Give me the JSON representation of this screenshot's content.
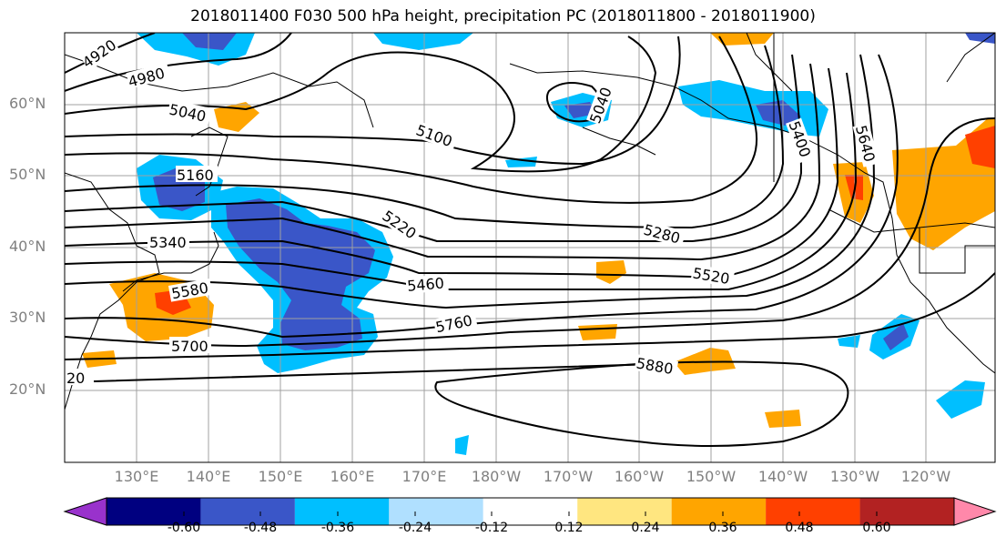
{
  "title": "2018011400 F030 500 hPa height, precipitation PC (2018011800 - 2018011900)",
  "lat_labels": [
    "60°N",
    "50°N",
    "40°N",
    "30°N",
    "20°N"
  ],
  "lon_labels": [
    "130°E",
    "140°E",
    "150°E",
    "160°E",
    "170°E",
    "180°W",
    "170°W",
    "160°W",
    "150°W",
    "140°W",
    "130°W",
    "120°W"
  ],
  "contour_labels": [
    "4920",
    "4980",
    "5040",
    "5160",
    "5340",
    "5580",
    "5700",
    "20",
    "5100",
    "5040",
    "5220",
    "5460",
    "5760",
    "5280",
    "5520",
    "5880",
    "5400",
    "5640"
  ],
  "colorbar": {
    "ticks": [
      "-0.60",
      "-0.48",
      "-0.36",
      "-0.24",
      "-0.12",
      "0.12",
      "0.24",
      "0.36",
      "0.48",
      "0.60"
    ],
    "colors": [
      "#9932cc",
      "#000080",
      "#3a56c8",
      "#00bfff",
      "#b0e0ff",
      "#ffffff",
      "#ffe680",
      "#ffa500",
      "#ff4000",
      "#b22222",
      "#ff88aa"
    ]
  },
  "fill_colors": {
    "light_blue": "#00bfff",
    "mid_blue": "#3a56c8",
    "dark_blue": "#000080",
    "pale_yellow": "#ffe680",
    "orange": "#ffa500",
    "red_orange": "#ff4000"
  }
}
